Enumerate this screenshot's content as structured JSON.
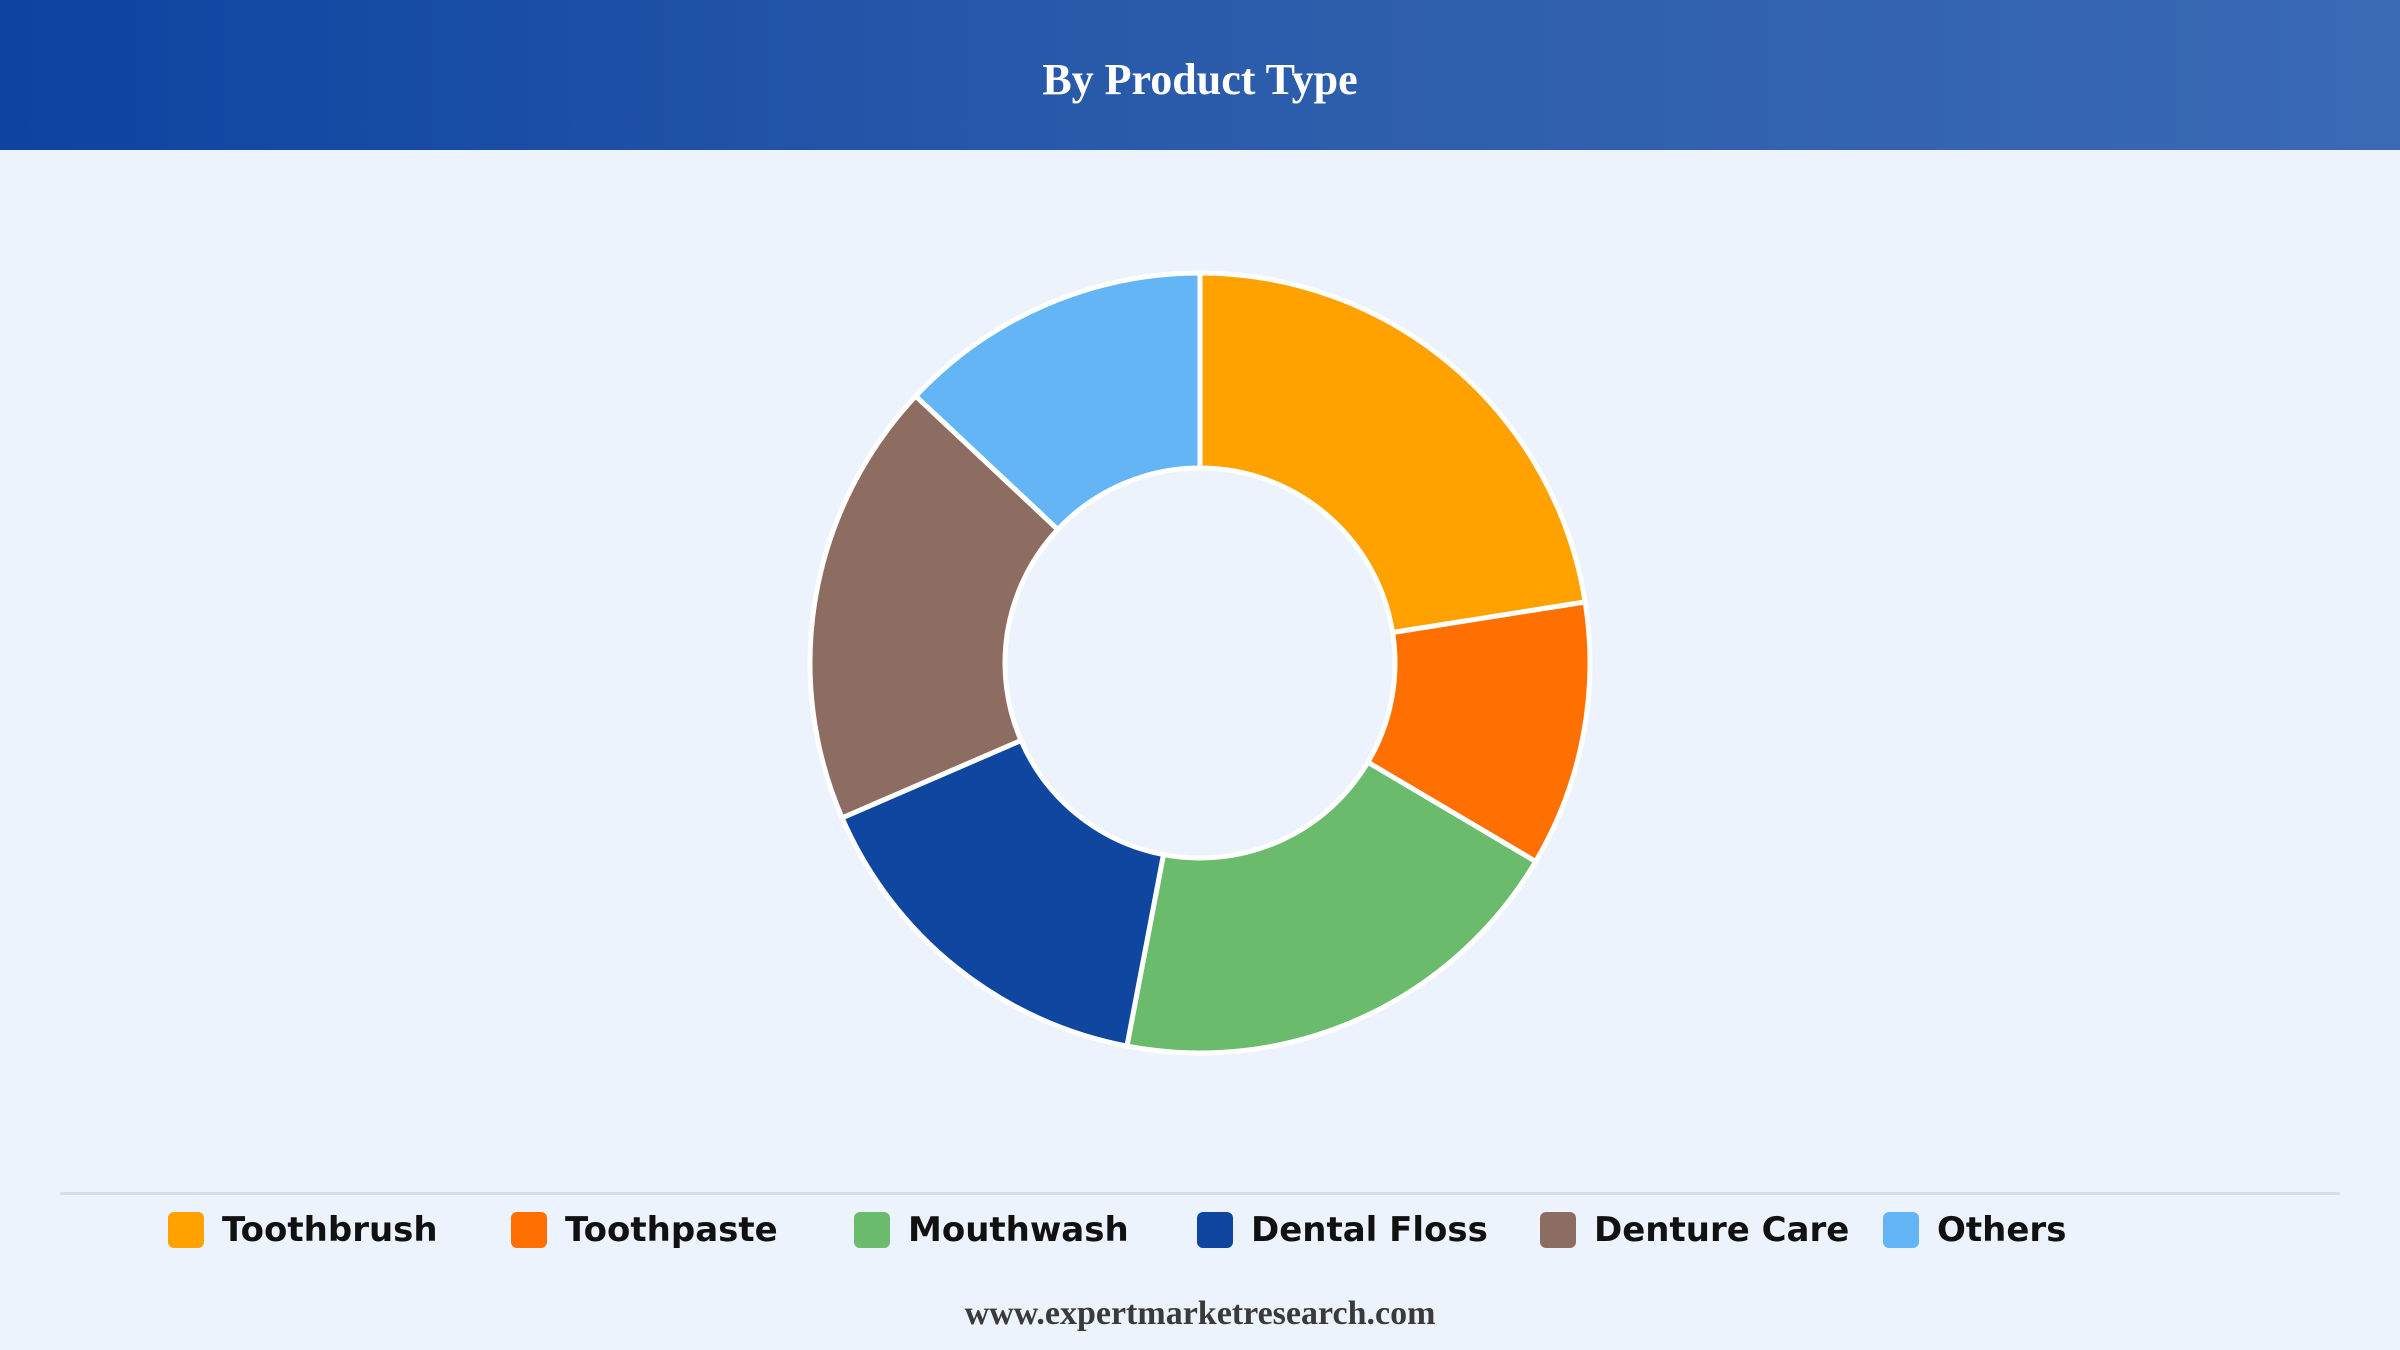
{
  "header": {
    "title": "By Product Type"
  },
  "chart_data": {
    "type": "pie",
    "donut": true,
    "categories": [
      "Toothbrush",
      "Toothpaste",
      "Mouthwash",
      "Dental Floss",
      "Denture Care",
      "Others"
    ],
    "values": [
      22.5,
      11,
      19.5,
      15.5,
      18.5,
      13
    ],
    "colors": [
      "#ffa200",
      "#ff7000",
      "#6abb6c",
      "#0e46a0",
      "#8d6c61",
      "#64b5f6"
    ],
    "legend_position": "bottom"
  },
  "footer": {
    "text": "www.expertmarketresearch.com"
  }
}
